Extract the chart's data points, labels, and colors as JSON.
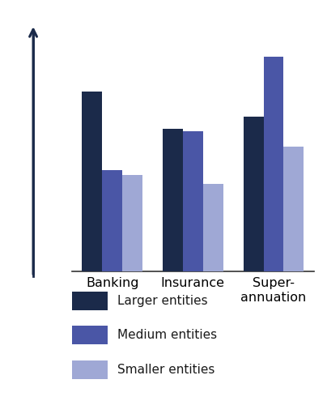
{
  "categories": [
    "Banking",
    "Insurance",
    "Super-\nannuation"
  ],
  "larger": [
    0.78,
    0.62,
    0.67
  ],
  "medium": [
    0.44,
    0.61,
    0.93
  ],
  "smaller": [
    0.42,
    0.38,
    0.54
  ],
  "colors": {
    "larger": "#1b2a4a",
    "medium": "#4a56a6",
    "smaller": "#9fa8d5"
  },
  "legend_labels": [
    "Larger entities",
    "Medium entities",
    "Smaller entities"
  ],
  "ylim": [
    0,
    1.05
  ],
  "bar_width": 0.25,
  "background_color": "#ffffff",
  "arrow_color": "#1b2a4a",
  "axis_color": "#333333",
  "tick_fontsize": 11.5,
  "legend_fontsize": 11,
  "ylabel_fontsize": 11
}
